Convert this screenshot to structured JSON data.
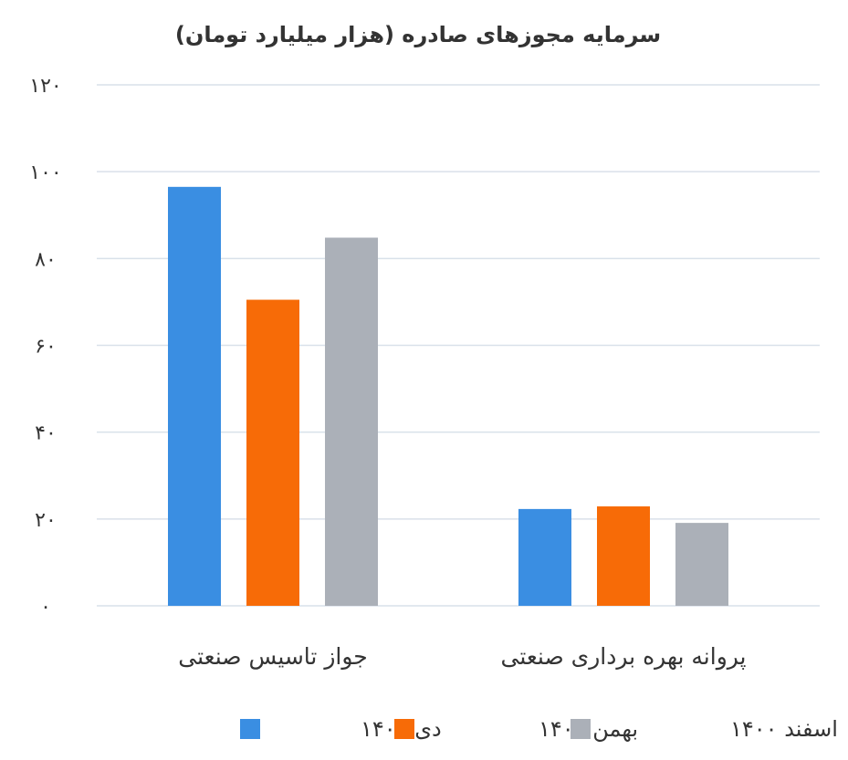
{
  "chart_data": {
    "type": "bar",
    "title": "سرمایه مجوزهای صادره (هزار میلیارد تومان)",
    "categories": [
      "جواز تاسیس صنعتی",
      "پروانه بهره برداری صنعتی"
    ],
    "series": [
      {
        "name": "دی ۱۴۰۰",
        "color": "#3a8ee2",
        "values": [
          96.5,
          22.3
        ]
      },
      {
        "name": "بهمن ۱۴۰۰",
        "color": "#f76b07",
        "values": [
          70.5,
          22.9
        ]
      },
      {
        "name": "اسفند ۱۴۰۰",
        "color": "#abb0b8",
        "values": [
          84.8,
          19.1
        ]
      }
    ],
    "ylim": [
      0,
      120
    ],
    "yticks": [
      0,
      20,
      40,
      60,
      80,
      100,
      120
    ],
    "ytick_labels": [
      "۰",
      "۲۰",
      "۴۰",
      "۶۰",
      "۸۰",
      "۱۰۰",
      "۱۲۰"
    ],
    "grid": true,
    "legend_position": "bottom"
  }
}
